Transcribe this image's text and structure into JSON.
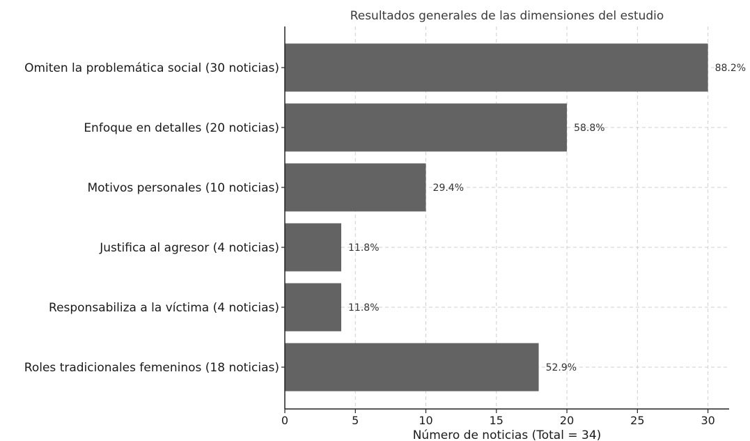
{
  "chart_data": {
    "type": "bar",
    "orientation": "horizontal",
    "title": "Resultados generales de las dimensiones del estudio",
    "xlabel": "Número de noticias (Total = 34)",
    "ylabel": "",
    "xlim": [
      0,
      31.5
    ],
    "xticks": [
      0,
      5,
      10,
      15,
      20,
      25,
      30
    ],
    "grid": true,
    "bar_color": "#636363",
    "categories": [
      "Omiten la problemática social (30 noticias)",
      "Enfoque en detalles (20 noticias)",
      "Motivos personales (10 noticias)",
      "Justifica al agresor (4 noticias)",
      "Responsabiliza a la víctima (4 noticias)",
      "Roles tradicionales femeninos (18 noticias)"
    ],
    "values": [
      30,
      20,
      10,
      4,
      4,
      18
    ],
    "data_labels": [
      "88.2%",
      "58.8%",
      "29.4%",
      "11.8%",
      "11.8%",
      "52.9%"
    ]
  }
}
